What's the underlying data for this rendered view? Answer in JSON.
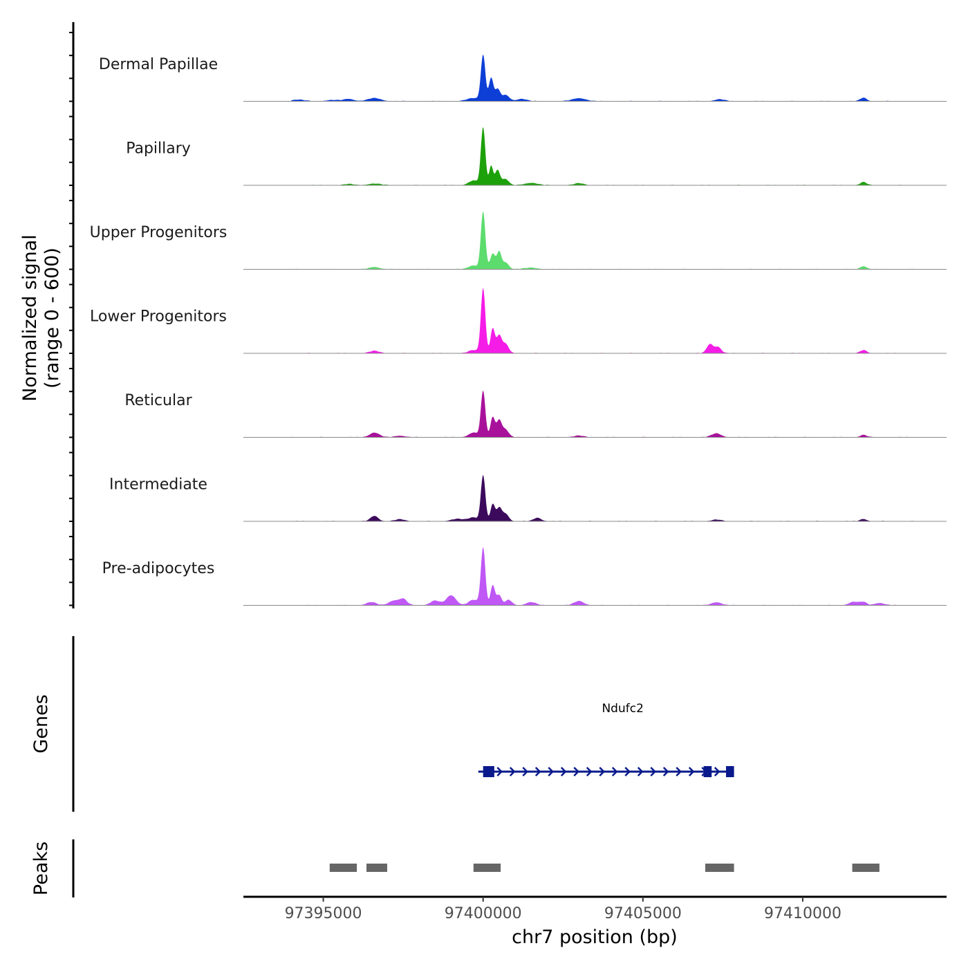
{
  "chart_data": {
    "type": "area",
    "title": "",
    "ylabel_line1": "Normalized signal",
    "ylabel_line2": "(range 0 - 600)",
    "xlabel": "chr7 position (bp)",
    "xlim": [
      97392500,
      97414500
    ],
    "ylim": [
      0,
      600
    ],
    "xticks": [
      97395000,
      97400000,
      97405000,
      97410000
    ],
    "xtick_labels": [
      "97395000",
      "97400000",
      "97405000",
      "97410000"
    ],
    "series": [
      {
        "name": "Dermal Papillae",
        "color": "#0d3fd6",
        "peaks": [
          [
            97394200,
            20,
            200
          ],
          [
            97395300,
            15,
            200
          ],
          [
            97395800,
            30,
            150
          ],
          [
            97396600,
            40,
            200
          ],
          [
            97399700,
            40,
            200
          ],
          [
            97400000,
            600,
            70
          ],
          [
            97400250,
            300,
            70
          ],
          [
            97400450,
            150,
            80
          ],
          [
            97400700,
            80,
            120
          ],
          [
            97401200,
            30,
            150
          ],
          [
            97403000,
            40,
            200
          ],
          [
            97407400,
            25,
            150
          ],
          [
            97411900,
            45,
            100
          ]
        ]
      },
      {
        "name": "Papillary",
        "color": "#1da10b",
        "peaks": [
          [
            97395800,
            15,
            150
          ],
          [
            97396600,
            20,
            200
          ],
          [
            97399700,
            60,
            150
          ],
          [
            97400000,
            750,
            70
          ],
          [
            97400250,
            250,
            60
          ],
          [
            97400450,
            200,
            80
          ],
          [
            97400700,
            80,
            100
          ],
          [
            97401500,
            30,
            200
          ],
          [
            97403000,
            25,
            150
          ],
          [
            97411900,
            40,
            100
          ]
        ]
      },
      {
        "name": "Upper Progenitors",
        "color": "#5ddc6e",
        "peaks": [
          [
            97396600,
            30,
            150
          ],
          [
            97399700,
            50,
            150
          ],
          [
            97400000,
            750,
            70
          ],
          [
            97400300,
            200,
            80
          ],
          [
            97400500,
            220,
            70
          ],
          [
            97400700,
            90,
            100
          ],
          [
            97401500,
            20,
            200
          ],
          [
            97411900,
            40,
            100
          ]
        ]
      },
      {
        "name": "Lower Progenitors",
        "color": "#f51ce7",
        "peaks": [
          [
            97396600,
            30,
            150
          ],
          [
            97399700,
            40,
            150
          ],
          [
            97400000,
            850,
            70
          ],
          [
            97400300,
            320,
            70
          ],
          [
            97400500,
            220,
            80
          ],
          [
            97400700,
            120,
            100
          ],
          [
            97407100,
            120,
            100
          ],
          [
            97407350,
            80,
            100
          ],
          [
            97411900,
            40,
            100
          ]
        ]
      },
      {
        "name": "Reticular",
        "color": "#a8129b",
        "peaks": [
          [
            97396600,
            60,
            150
          ],
          [
            97397400,
            20,
            150
          ],
          [
            97399700,
            60,
            150
          ],
          [
            97400000,
            600,
            70
          ],
          [
            97400300,
            260,
            70
          ],
          [
            97400500,
            220,
            80
          ],
          [
            97400700,
            100,
            100
          ],
          [
            97403000,
            20,
            150
          ],
          [
            97407300,
            50,
            150
          ],
          [
            97411900,
            30,
            100
          ]
        ]
      },
      {
        "name": "Intermediate",
        "color": "#3c0a5c",
        "peaks": [
          [
            97396600,
            70,
            120
          ],
          [
            97397400,
            25,
            150
          ],
          [
            97399200,
            30,
            200
          ],
          [
            97399700,
            50,
            150
          ],
          [
            97400000,
            600,
            70
          ],
          [
            97400300,
            220,
            70
          ],
          [
            97400500,
            170,
            80
          ],
          [
            97400700,
            100,
            100
          ],
          [
            97401700,
            45,
            120
          ],
          [
            97407300,
            20,
            150
          ],
          [
            97411900,
            30,
            100
          ]
        ]
      },
      {
        "name": "Pre-adipocytes",
        "color": "#bf58f5",
        "peaks": [
          [
            97396500,
            40,
            150
          ],
          [
            97397200,
            60,
            150
          ],
          [
            97397500,
            80,
            120
          ],
          [
            97398500,
            60,
            150
          ],
          [
            97399000,
            130,
            150
          ],
          [
            97399700,
            70,
            150
          ],
          [
            97400000,
            750,
            70
          ],
          [
            97400300,
            260,
            70
          ],
          [
            97400500,
            130,
            80
          ],
          [
            97400800,
            70,
            100
          ],
          [
            97401500,
            40,
            150
          ],
          [
            97403000,
            55,
            150
          ],
          [
            97407300,
            40,
            150
          ],
          [
            97411600,
            45,
            150
          ],
          [
            97411900,
            40,
            100
          ],
          [
            97412400,
            30,
            150
          ]
        ]
      }
    ],
    "genes": [
      {
        "name": "Ndufc2",
        "strand": "+",
        "start": 97399850,
        "end": 97407850,
        "color": "#0a1a8c",
        "exons": [
          [
            97400000,
            97400350
          ],
          [
            97406900,
            97407150
          ],
          [
            97407600,
            97407850
          ]
        ]
      }
    ],
    "genes_label": "Genes",
    "peaks_label": "Peaks",
    "peak_regions": [
      [
        97395200,
        97396050
      ],
      [
        97396350,
        97397000
      ],
      [
        97399700,
        97400550
      ],
      [
        97406950,
        97407850
      ],
      [
        97411550,
        97412400
      ]
    ],
    "peak_color": "#666666"
  }
}
